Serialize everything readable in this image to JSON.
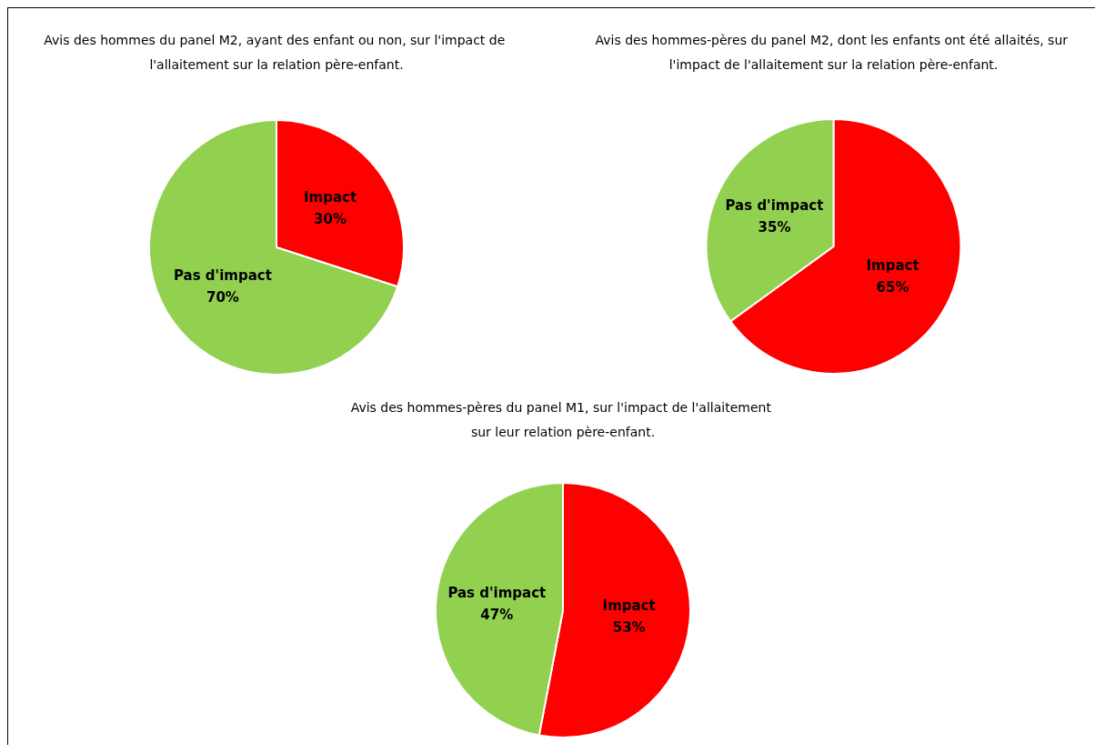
{
  "chart_data": [
    {
      "type": "pie",
      "title": "Avis des hommes du panel M2, ayant des enfant ou non, sur l'impact de l'allaitement sur la relation père-enfant.",
      "categories": [
        "Impact",
        "Pas d'impact"
      ],
      "values": [
        30,
        70
      ],
      "colors": [
        "#ff0000",
        "#92d050"
      ],
      "value_labels": [
        "30%",
        "70%"
      ],
      "legend": false
    },
    {
      "type": "pie",
      "title": "Avis des hommes-pères du panel M2, dont les enfants ont été allaités, sur l'impact de l'allaitement sur la relation père-enfant.",
      "categories": [
        "Impact",
        "Pas d'impact"
      ],
      "values": [
        65,
        35
      ],
      "colors": [
        "#ff0000",
        "#92d050"
      ],
      "value_labels": [
        "65%",
        "35%"
      ],
      "legend": false
    },
    {
      "type": "pie",
      "title": "Avis des hommes-pères du panel M1, sur l'impact de l'allaitement sur leur relation père-enfant.",
      "categories": [
        "Impact",
        "Pas d'impact"
      ],
      "values": [
        53,
        47
      ],
      "colors": [
        "#ff0000",
        "#92d050"
      ],
      "value_labels": [
        "53%",
        "47%"
      ],
      "legend": false
    }
  ]
}
